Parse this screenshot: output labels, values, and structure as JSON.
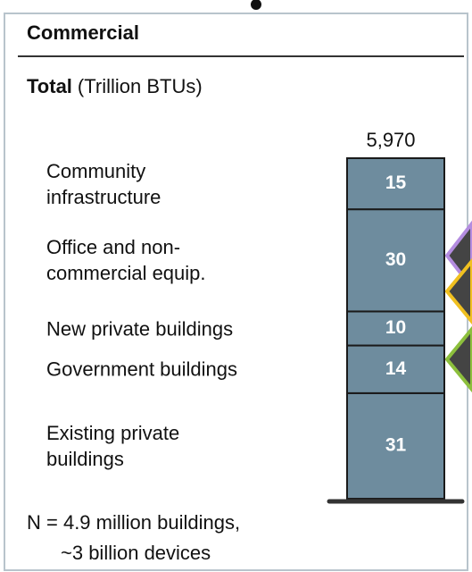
{
  "chart_data": {
    "type": "stacked_bar",
    "title": "Commercial",
    "subtitle": "Total",
    "unit": "(Trillion BTUs)",
    "total": {
      "value": 5970,
      "label": "5,970"
    },
    "categories": [
      "Existing private buildings",
      "Government buildings",
      "New private buildings",
      "Office and non-commercial equip.",
      "Community infrastructure"
    ],
    "values": [
      31,
      14,
      10,
      30,
      15
    ],
    "color": "#6e8c9e",
    "ylim": [
      0,
      100
    ],
    "note": [
      "N = 4.9 million buildings,",
      "~3 billion devices"
    ]
  }
}
